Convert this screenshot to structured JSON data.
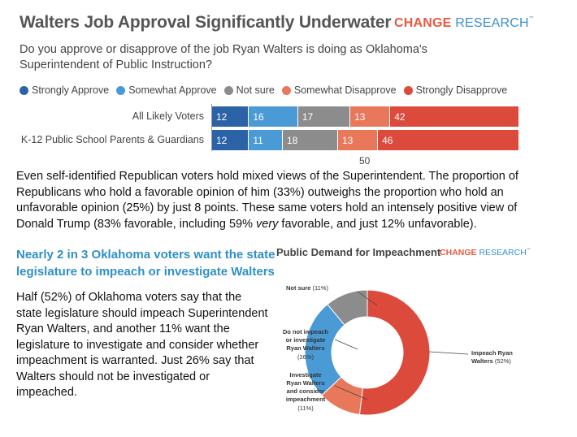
{
  "header": {
    "title": "Walters Job Approval Significantly Underwater",
    "brand_word1": "CHANGE",
    "brand_word2": "RESEARCH",
    "question": "Do you approve or disapprove of the job Ryan Walters is doing as Oklahoma's Superintendent of Public Instruction?"
  },
  "chart_data": [
    {
      "type": "bar",
      "orientation": "horizontal-stacked",
      "categories": [
        "All Likely Voters",
        "K-12 Public School Parents & Guardians"
      ],
      "series": [
        {
          "name": "Strongly Approve",
          "color": "#2c62a6",
          "values": [
            12,
            12
          ]
        },
        {
          "name": "Somewhat Approve",
          "color": "#4a9ad6",
          "values": [
            16,
            11
          ]
        },
        {
          "name": "Not sure",
          "color": "#8c8c8c",
          "values": [
            17,
            18
          ]
        },
        {
          "name": "Somewhat Disapprove",
          "color": "#e9775a",
          "values": [
            13,
            13
          ]
        },
        {
          "name": "Strongly Disapprove",
          "color": "#dc4a3c",
          "values": [
            42,
            46
          ]
        }
      ],
      "xlim": [
        0,
        100
      ],
      "xticks": [
        "50"
      ],
      "legend": "top"
    },
    {
      "type": "pie",
      "variant": "donut",
      "title": "Public Demand for Impeachment",
      "brand_word1": "CHANGE",
      "brand_word2": "RESEARCH",
      "slices": [
        {
          "label": "Impeach Ryan Walters",
          "value": 52,
          "pct_text": "(52%)",
          "color": "#dc4a3c"
        },
        {
          "label": "Investigate Ryan Walters and consider impeachment",
          "value": 11,
          "pct_text": "(11%)",
          "color": "#e9775a"
        },
        {
          "label": "Do not impeach or investigate Ryan Walters",
          "value": 26,
          "pct_text": "(26%)",
          "color": "#4a9ad6"
        },
        {
          "label": "Not sure",
          "value": 11,
          "pct_text": "(11%)",
          "color": "#8c8c8c"
        }
      ]
    }
  ],
  "text": {
    "paragraph1_a": "Even self-identified Republican voters hold mixed views of the Superintendent. The proportion of Republicans who hold a favorable opinion of him (33%) outweighs the proportion who hold an unfavorable opinion (25%) by just 8 points. These same voters hold an intensely positive view of Donald Trump (83% favorable, including 59% ",
    "paragraph1_em": "very",
    "paragraph1_b": " favorable, and just 12% unfavorable).",
    "subhead": "Nearly 2 in 3 Oklahoma voters want the state legislature to impeach or investigate Walters",
    "paragraph2": "Half (52%) of Oklahoma voters say that the state legislature should impeach Superintendent Ryan Walters, and another 11% want the legislature to investigate and consider whether impeachment is warranted. Just 26% say that Walters should not be investigated or impeached."
  }
}
